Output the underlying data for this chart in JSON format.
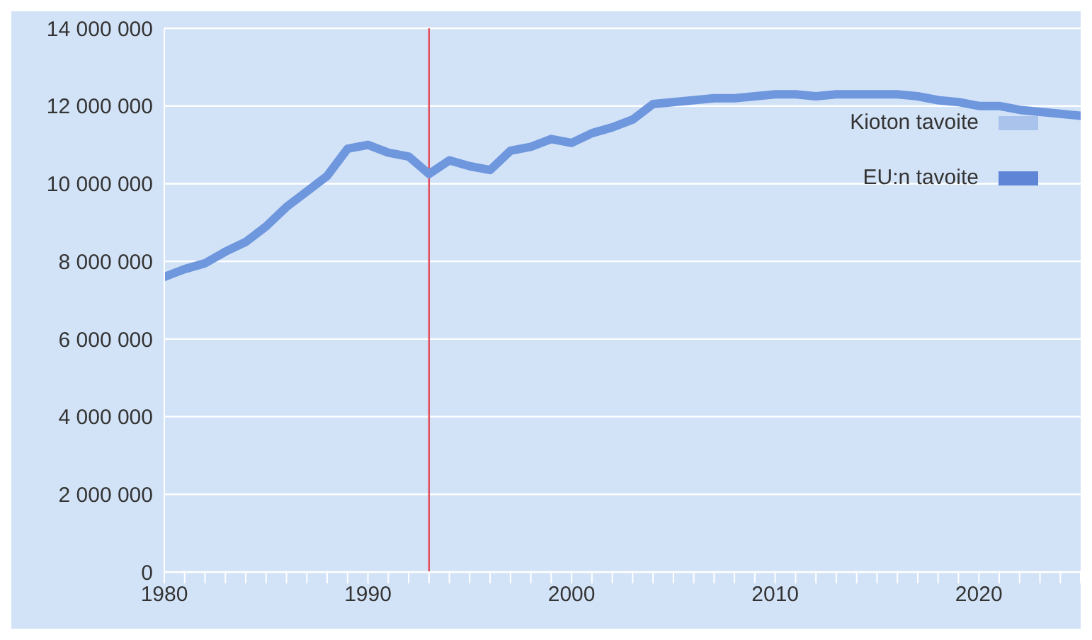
{
  "chart_data": {
    "type": "line",
    "x": [
      1980,
      1981,
      1982,
      1983,
      1984,
      1985,
      1986,
      1987,
      1988,
      1989,
      1990,
      1991,
      1992,
      1993,
      1994,
      1995,
      1996,
      1997,
      1998,
      1999,
      2000,
      2001,
      2002,
      2003,
      2004,
      2005,
      2006,
      2007,
      2008,
      2009,
      2010,
      2011,
      2012,
      2013,
      2014,
      2015,
      2016,
      2017,
      2018,
      2019,
      2020,
      2021,
      2022,
      2023,
      2024,
      2025
    ],
    "series": [
      {
        "color": "#6f97de",
        "values": [
          7600000,
          7800000,
          7950000,
          8250000,
          8500000,
          8900000,
          9400000,
          9800000,
          10200000,
          10900000,
          11000000,
          10800000,
          10700000,
          10250000,
          10600000,
          10450000,
          10350000,
          10850000,
          10950000,
          11150000,
          11050000,
          11300000,
          11450000,
          11650000,
          12050000,
          12100000,
          12150000,
          12200000,
          12200000,
          12250000,
          12300000,
          12300000,
          12250000,
          12300000,
          12300000,
          12300000,
          12300000,
          12250000,
          12150000,
          12100000,
          12000000,
          12000000,
          11900000,
          11850000,
          11800000,
          11750000
        ]
      },
      {
        "name": "Kioton tavoite",
        "color": "#a9c3ec",
        "values": [
          null,
          null,
          null,
          null,
          null,
          null,
          null,
          null,
          null,
          null,
          null,
          null,
          null,
          null,
          null,
          null,
          null,
          null,
          null,
          null,
          null,
          null,
          null,
          null,
          null,
          null,
          null,
          null,
          null,
          null,
          null,
          null,
          null,
          null,
          null,
          null,
          null,
          null,
          null,
          null,
          null,
          null,
          null,
          null,
          null,
          null
        ]
      },
      {
        "name": "EU:n tavoite",
        "color": "#5f86d6",
        "values": [
          null,
          null,
          null,
          null,
          null,
          null,
          null,
          null,
          null,
          null,
          null,
          null,
          null,
          null,
          null,
          null,
          null,
          null,
          null,
          null,
          null,
          null,
          null,
          null,
          null,
          null,
          null,
          null,
          null,
          null,
          null,
          null,
          null,
          null,
          null,
          null,
          null,
          null,
          null,
          null,
          null,
          null,
          null,
          null,
          null,
          null
        ]
      }
    ],
    "xlim": [
      1980,
      2025
    ],
    "xticks": [
      1980,
      {
        "value": 1981,
        "label": null
      },
      {
        "value": 1982,
        "label": null
      },
      {
        "value": 1983,
        "label": null
      },
      {
        "value": 1984,
        "label": null
      },
      {
        "value": 1985,
        "label": null
      },
      {
        "value": 1986,
        "label": null
      },
      {
        "value": 1987,
        "label": null
      },
      {
        "value": 1988,
        "label": null
      },
      {
        "value": 1989,
        "label": null
      },
      1990,
      {
        "value": 1991,
        "label": null
      },
      {
        "value": 1992,
        "label": null
      },
      {
        "value": 1993,
        "label": null
      },
      {
        "value": 1994,
        "label": null
      },
      {
        "value": 1995,
        "label": null
      },
      {
        "value": 1996,
        "label": null
      },
      {
        "value": 1997,
        "label": null
      },
      {
        "value": 1998,
        "label": null
      },
      {
        "value": 1999,
        "label": null
      },
      2000,
      {
        "value": 2001,
        "label": null
      },
      {
        "value": 2002,
        "label": null
      },
      {
        "value": 2003,
        "label": null
      },
      {
        "value": 2004,
        "label": null
      },
      {
        "value": 2005,
        "label": null
      },
      {
        "value": 2006,
        "label": null
      },
      {
        "value": 2007,
        "label": null
      },
      {
        "value": 2008,
        "label": null
      },
      {
        "value": 2009,
        "label": null
      },
      2010,
      {
        "value": 2011,
        "label": null
      },
      {
        "value": 2012,
        "label": null
      },
      {
        "value": 2013,
        "label": null
      },
      {
        "value": 2014,
        "label": null
      },
      {
        "value": 2015,
        "label": null
      },
      {
        "value": 2016,
        "label": null
      },
      {
        "value": 2017,
        "label": null
      },
      {
        "value": 2018,
        "label": null
      },
      {
        "value": 2019,
        "label": null
      },
      2020,
      {
        "value": 2021,
        "label": null
      },
      {
        "value": 2022,
        "label": null
      },
      {
        "value": 2023,
        "label": null
      },
      {
        "value": 2024,
        "label": null
      },
      {
        "value": 2025,
        "label": null
      }
    ],
    "ylim": [
      0,
      14000000
    ],
    "yticks": [
      0,
      {
        "value": 2000000,
        "label": "2 000 000"
      },
      {
        "value": 4000000,
        "label": "4 000 000"
      },
      {
        "value": 6000000,
        "label": "6 000 000"
      },
      {
        "value": 8000000,
        "label": "8 000 000"
      },
      {
        "value": 10000000,
        "label": "10 000 000"
      },
      {
        "value": 12000000,
        "label": "12 000 000"
      },
      {
        "value": 14000000,
        "label": "14 000 000"
      }
    ],
    "grid": "y",
    "legend": "top right",
    "marker": "none",
    "line_style": "solid",
    "ref_lines": [
      {
        "axis": "x",
        "value": 1993,
        "color": "#e05060"
      }
    ]
  }
}
